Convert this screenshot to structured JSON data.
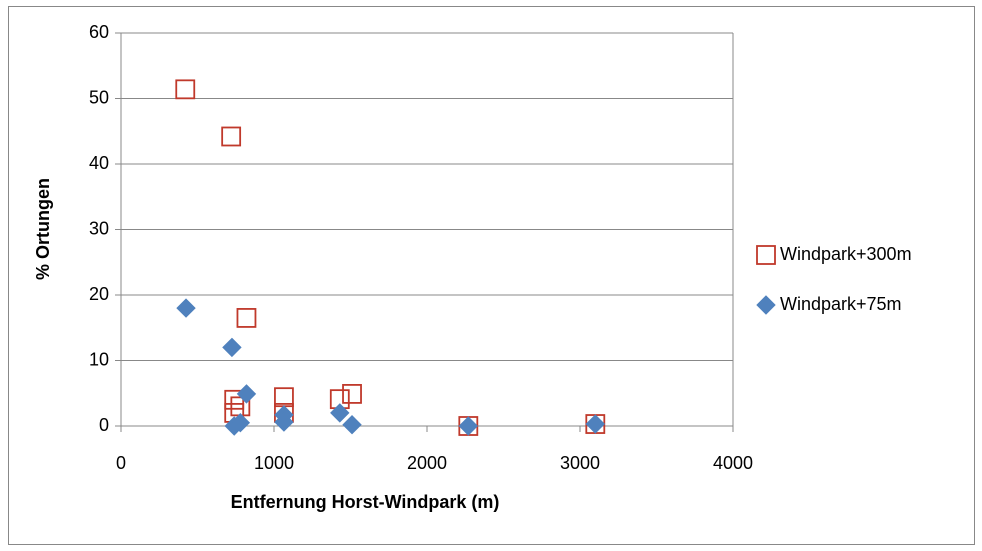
{
  "chart_data": {
    "type": "scatter",
    "xlabel": "Entfernung Horst-Windpark (m)",
    "ylabel": "% Ortungen",
    "xlim": [
      0,
      4000
    ],
    "xticks": [
      0,
      1000,
      2000,
      3000,
      4000
    ],
    "ylim": [
      0,
      60
    ],
    "yticks": [
      0,
      10,
      20,
      30,
      40,
      50,
      60
    ],
    "grid": true,
    "legend": "right",
    "series": [
      {
        "name": "Windpark+300m",
        "color": "#c0392b",
        "marker": "square",
        "x": [
          420,
          720,
          820,
          740,
          740,
          780,
          1065,
          1065,
          1430,
          1510,
          2270,
          3100
        ],
        "values": [
          51.4,
          44.2,
          16.5,
          4,
          2,
          3,
          4.4,
          2,
          4.1,
          4.9,
          0,
          0.3
        ]
      },
      {
        "name": "Windpark+75m",
        "color": "#4f81bd",
        "marker": "diamond",
        "x": [
          425,
          725,
          820,
          740,
          780,
          1065,
          1065,
          1430,
          1510,
          2270,
          3100
        ],
        "values": [
          18,
          12,
          4.9,
          0,
          0.5,
          1.7,
          0.6,
          2,
          0.2,
          0,
          0.3
        ]
      }
    ]
  }
}
